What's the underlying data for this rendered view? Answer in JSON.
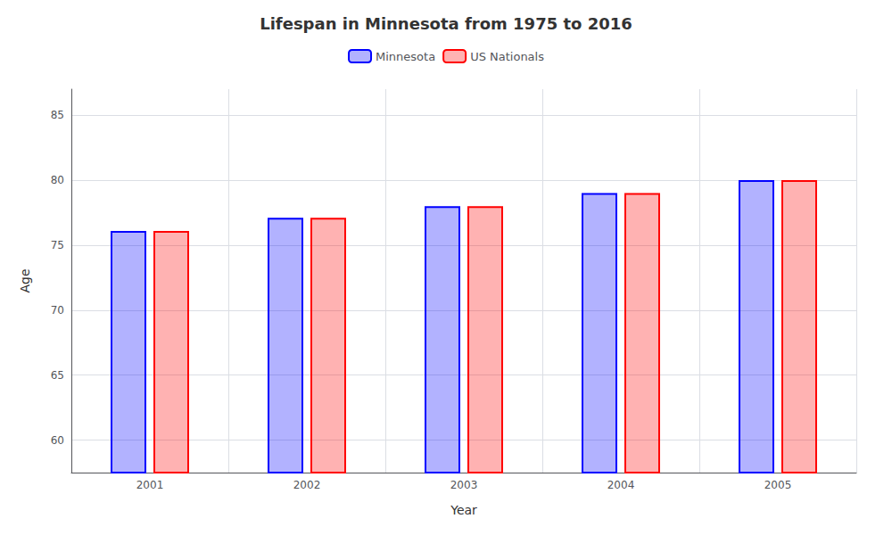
{
  "chart_data": {
    "type": "bar",
    "title": "Lifespan in Minnesota from 1975 to 2016",
    "x_label": "Year",
    "y_label": "Age",
    "categories": [
      "2001",
      "2002",
      "2003",
      "2004",
      "2005"
    ],
    "series": [
      {
        "name": "Minnesota",
        "color": "#0000ff",
        "values": [
          76.1,
          77.1,
          78.0,
          79.0,
          80.0
        ]
      },
      {
        "name": "US Nationals",
        "color": "#ff0000",
        "values": [
          76.1,
          77.1,
          78.0,
          79.0,
          80.0
        ]
      }
    ],
    "ylim": [
      57.5,
      87
    ],
    "yticks": [
      60,
      65,
      70,
      75,
      80,
      85
    ],
    "grid": true,
    "legend": "top"
  }
}
